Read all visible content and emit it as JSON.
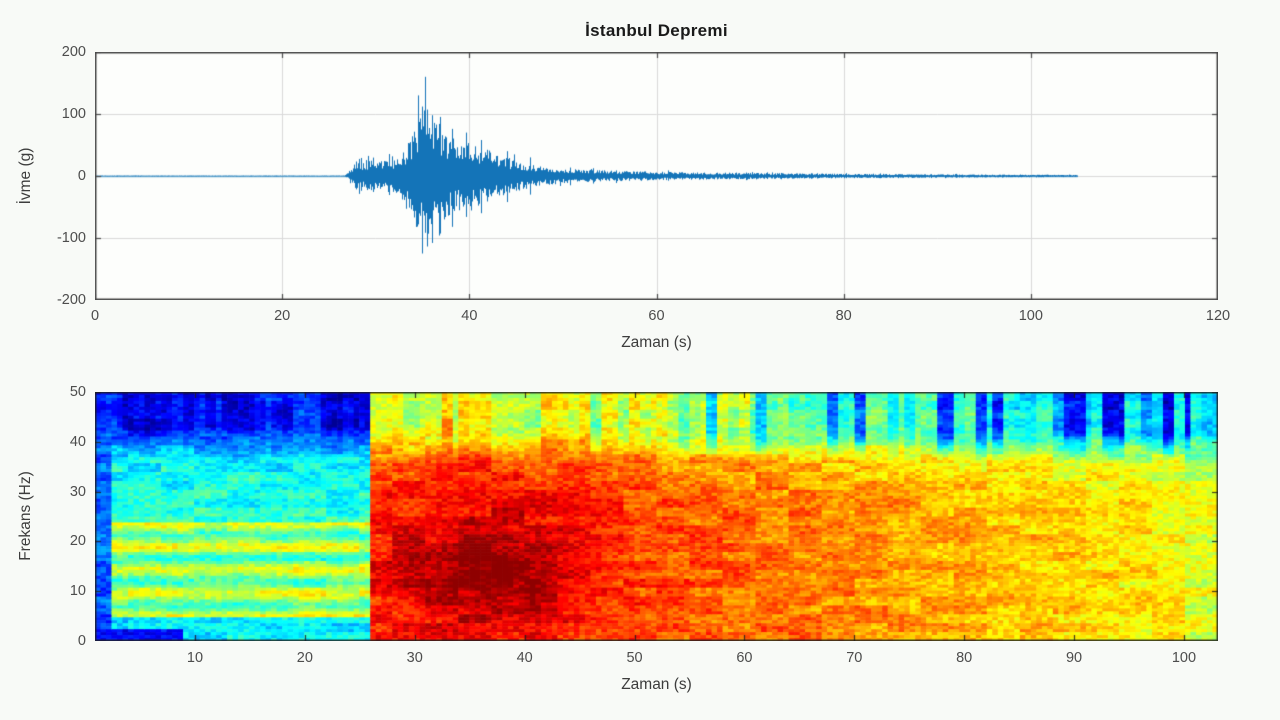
{
  "figure": {
    "background": "#f8faf7",
    "plot_background": "#fdfefc",
    "axis_color": "#4a4a4a",
    "grid_color": "#d9d9d9",
    "tick_label_color": "#4d4d4d",
    "trace_color": "#1474b8",
    "baseline_color": "rgba(80,160,205,0.75)",
    "title_color": "#1a1a1a"
  },
  "chart_data": [
    {
      "type": "line",
      "title": "İstanbul Depremi",
      "xlabel": "Zaman (s)",
      "ylabel": "İvme (g)",
      "xlim": [
        0,
        120
      ],
      "ylim": [
        -200,
        200
      ],
      "xticks": [
        0,
        20,
        40,
        60,
        80,
        100,
        120
      ],
      "yticks": [
        200,
        100,
        0,
        -100,
        -200
      ],
      "grid": true,
      "series": "seismic acceleration trace, quiet until ~27 s, burst peaking near 35 s, coda decaying until ~105 s",
      "signal": {
        "quiet_until_s": 26.6,
        "signal_end_s": 105,
        "peak_time_s": 35.3,
        "peak_max_g": 160,
        "peak_min_g": -125,
        "envelope": [
          [
            0,
            0.7
          ],
          [
            26.6,
            0.7
          ],
          [
            27,
            5
          ],
          [
            27.4,
            16
          ],
          [
            27.8,
            24
          ],
          [
            28.4,
            22
          ],
          [
            29,
            26
          ],
          [
            29.6,
            23
          ],
          [
            30.2,
            27
          ],
          [
            31,
            25
          ],
          [
            31.8,
            29
          ],
          [
            32.6,
            34
          ],
          [
            33.2,
            46
          ],
          [
            33.8,
            66
          ],
          [
            34.4,
            88
          ],
          [
            35,
            112
          ],
          [
            35.4,
            118
          ],
          [
            35.8,
            100
          ],
          [
            36.4,
            90
          ],
          [
            37,
            76
          ],
          [
            37.8,
            64
          ],
          [
            38.6,
            58
          ],
          [
            39.4,
            56
          ],
          [
            40.2,
            54
          ],
          [
            41,
            48
          ],
          [
            42,
            44
          ],
          [
            43,
            36
          ],
          [
            44,
            30
          ],
          [
            45,
            26
          ],
          [
            46,
            21
          ],
          [
            47,
            17
          ],
          [
            48,
            15
          ],
          [
            49,
            13.5
          ],
          [
            50,
            12
          ],
          [
            52,
            10.5
          ],
          [
            54,
            9.5
          ],
          [
            56,
            8.5
          ],
          [
            58,
            8
          ],
          [
            60,
            7
          ],
          [
            63,
            6.2
          ],
          [
            66,
            5.6
          ],
          [
            70,
            5
          ],
          [
            74,
            4.4
          ],
          [
            78,
            3.9
          ],
          [
            82,
            3.4
          ],
          [
            86,
            3
          ],
          [
            90,
            2.7
          ],
          [
            94,
            2.4
          ],
          [
            98,
            2.1
          ],
          [
            102,
            1.9
          ],
          [
            105,
            1.7
          ]
        ],
        "spikes": [
          [
            34.5,
            130,
            -78
          ],
          [
            34.9,
            112,
            -125
          ],
          [
            35.3,
            160,
            -52
          ],
          [
            36.0,
            98,
            -108
          ],
          [
            36.8,
            84,
            -96
          ],
          [
            38.2,
            76,
            -82
          ],
          [
            39.6,
            70,
            -66
          ],
          [
            41.2,
            58,
            -60
          ],
          [
            44.0,
            40,
            -42
          ],
          [
            46.5,
            30,
            -30
          ]
        ]
      }
    },
    {
      "type": "heatmap",
      "title": "",
      "xlabel": "Zaman (s)",
      "ylabel": "Frekans (Hz)",
      "xlim": [
        0.9,
        103.1
      ],
      "ylim": [
        0,
        50
      ],
      "xticks": [
        10,
        20,
        30,
        40,
        50,
        60,
        70,
        80,
        90,
        100
      ],
      "yticks": [
        0,
        10,
        20,
        30,
        40,
        50
      ],
      "colormap": "jet",
      "description": "spectrogram: cyan/green background with yellow 5-24 Hz streaks and dark-blue 42-50 Hz striped band before onset at ~25.7 s; after onset red-orange body below 38 Hz with dark-red core near t=36 s / f=14 Hz fading to yellow-orange by 103 s, and a 40-50 Hz band going yellow to green to cyan toward the right",
      "heat_params": {
        "onset_s": 25.7,
        "pre_base": 0.42,
        "pre_band_freqs": [
          5,
          24
        ],
        "pre_band_boost": 0.16,
        "pre_top_blue": 0.13,
        "body_base": 0.82,
        "body_decay_start_s": 45,
        "body_decay_total": 0.2,
        "core_t": 36,
        "core_f": 14,
        "core_boost": 0.13,
        "top_start": 0.63,
        "top_end_drop": 0.33
      }
    }
  ]
}
